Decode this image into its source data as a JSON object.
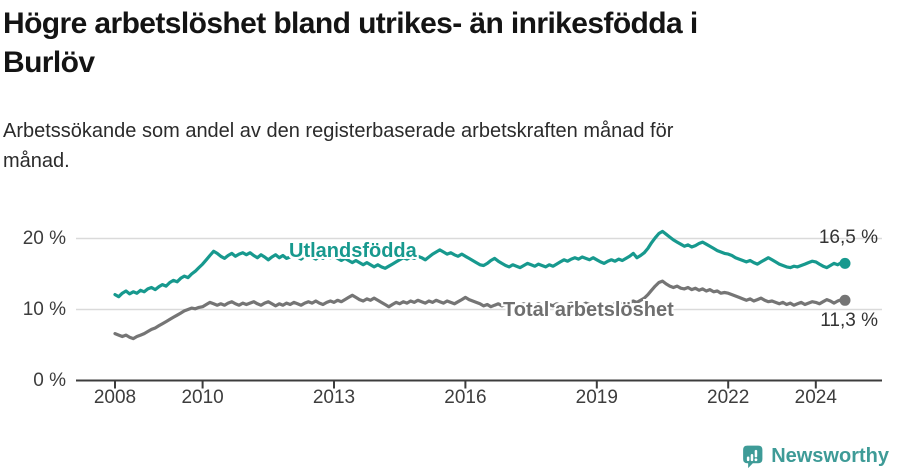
{
  "title": {
    "lines": [
      "Högre arbetslöshet bland utrikes- än inrikesfödda i",
      "Burlöv"
    ]
  },
  "subtitle": {
    "lines": [
      "Arbetssökande som andel av den registerbaserade arbetskraften månad för",
      "månad."
    ]
  },
  "chart_data": {
    "type": "line",
    "unit": "%",
    "x_axis": {
      "start": "2008-01",
      "interval": "monthly",
      "tick_years": [
        2008,
        2010,
        2013,
        2016,
        2019,
        2022,
        2024
      ],
      "tick_labels": [
        "2008",
        "2010",
        "2013",
        "2016",
        "2019",
        "2022",
        "2024"
      ]
    },
    "y_axis": {
      "ticks": [
        0,
        10,
        20
      ],
      "tick_labels": [
        "0 %",
        "10 %",
        "20 %"
      ],
      "ylim": [
        0,
        22.5
      ],
      "grid": true
    },
    "series": [
      {
        "name": "Utlandsfödda",
        "color": "#17998e",
        "end_label": "16,5 %",
        "end_value": 16.5,
        "values": [
          12.1,
          11.8,
          12.3,
          12.6,
          12.2,
          12.5,
          12.3,
          12.7,
          12.5,
          12.9,
          13.1,
          12.8,
          13.2,
          13.5,
          13.3,
          13.8,
          14.1,
          13.9,
          14.4,
          14.7,
          14.5,
          15.0,
          15.4,
          15.9,
          16.4,
          17.0,
          17.6,
          18.2,
          17.9,
          17.5,
          17.2,
          17.6,
          17.9,
          17.5,
          17.8,
          18.0,
          17.7,
          18.0,
          17.6,
          17.3,
          17.7,
          17.4,
          17.0,
          17.4,
          17.7,
          17.3,
          17.6,
          17.2,
          17.4,
          17.7,
          17.4,
          17.1,
          17.5,
          17.7,
          17.4,
          17.1,
          17.5,
          17.2,
          17.6,
          17.3,
          17.5,
          17.2,
          16.9,
          17.2,
          16.9,
          16.6,
          16.9,
          16.6,
          16.3,
          16.6,
          16.3,
          16.0,
          16.3,
          16.0,
          15.8,
          16.1,
          16.4,
          16.7,
          17.0,
          17.3,
          17.1,
          17.4,
          17.2,
          17.5,
          17.3,
          17.0,
          17.4,
          17.8,
          18.1,
          18.4,
          18.1,
          17.8,
          18.0,
          17.7,
          17.5,
          17.8,
          17.5,
          17.2,
          16.9,
          16.6,
          16.3,
          16.2,
          16.5,
          16.9,
          17.2,
          16.8,
          16.5,
          16.2,
          16.0,
          16.3,
          16.1,
          15.9,
          16.2,
          16.5,
          16.3,
          16.1,
          16.4,
          16.2,
          16.0,
          16.3,
          16.1,
          16.4,
          16.7,
          17.0,
          16.8,
          17.1,
          17.3,
          17.1,
          17.4,
          17.2,
          17.0,
          17.3,
          17.0,
          16.7,
          16.5,
          16.8,
          17.0,
          16.8,
          17.1,
          16.9,
          17.2,
          17.5,
          17.9,
          17.3,
          17.6,
          18.0,
          18.6,
          19.4,
          20.1,
          20.7,
          21.0,
          20.6,
          20.2,
          19.8,
          19.5,
          19.2,
          18.9,
          19.1,
          18.8,
          19.0,
          19.3,
          19.5,
          19.2,
          18.9,
          18.6,
          18.3,
          18.1,
          17.9,
          17.8,
          17.6,
          17.3,
          17.1,
          16.9,
          16.7,
          16.9,
          16.6,
          16.4,
          16.7,
          17.0,
          17.3,
          17.0,
          16.7,
          16.4,
          16.2,
          16.0,
          15.9,
          16.1,
          16.0,
          16.2,
          16.4,
          16.6,
          16.8,
          16.7,
          16.4,
          16.1,
          15.9,
          16.2,
          16.5,
          16.3,
          16.6,
          16.5
        ]
      },
      {
        "name": "Total arbetslöshet",
        "color": "#757575",
        "end_label": "11,3 %",
        "end_value": 11.3,
        "values": [
          6.6,
          6.4,
          6.2,
          6.4,
          6.1,
          5.9,
          6.2,
          6.4,
          6.6,
          6.9,
          7.2,
          7.4,
          7.7,
          8.0,
          8.3,
          8.6,
          8.9,
          9.2,
          9.5,
          9.8,
          10.0,
          10.2,
          10.1,
          10.3,
          10.4,
          10.7,
          11.0,
          10.8,
          10.6,
          10.8,
          10.6,
          10.9,
          11.1,
          10.8,
          10.6,
          10.9,
          10.7,
          10.9,
          11.1,
          10.8,
          10.6,
          10.9,
          11.1,
          10.8,
          10.5,
          10.8,
          10.6,
          10.9,
          10.7,
          11.0,
          10.8,
          10.6,
          10.9,
          11.1,
          10.9,
          11.2,
          10.9,
          10.7,
          11.0,
          11.2,
          11.0,
          11.3,
          11.1,
          11.4,
          11.7,
          12.0,
          11.7,
          11.4,
          11.2,
          11.5,
          11.3,
          11.6,
          11.3,
          11.0,
          10.7,
          10.4,
          10.7,
          11.0,
          10.8,
          11.1,
          10.9,
          11.2,
          11.0,
          11.3,
          11.1,
          10.9,
          11.2,
          11.0,
          11.3,
          11.1,
          10.9,
          11.2,
          11.0,
          10.8,
          11.1,
          11.4,
          11.7,
          11.4,
          11.2,
          11.0,
          10.8,
          10.5,
          10.7,
          10.4,
          10.6,
          10.8,
          10.5,
          10.7,
          10.5,
          10.7,
          10.4,
          10.6,
          10.8,
          10.5,
          10.3,
          10.6,
          10.8,
          10.6,
          10.4,
          10.7,
          10.5,
          10.8,
          10.6,
          10.4,
          10.7,
          10.9,
          10.6,
          10.4,
          10.6,
          10.9,
          10.7,
          10.5,
          10.4,
          10.6,
          10.4,
          10.7,
          10.5,
          10.8,
          10.6,
          10.9,
          10.7,
          11.0,
          11.2,
          11.0,
          11.3,
          11.6,
          12.1,
          12.7,
          13.3,
          13.8,
          14.0,
          13.6,
          13.3,
          13.1,
          13.3,
          13.0,
          12.9,
          13.1,
          12.8,
          13.0,
          12.7,
          12.9,
          12.6,
          12.8,
          12.5,
          12.6,
          12.3,
          12.4,
          12.3,
          12.1,
          11.9,
          11.7,
          11.5,
          11.3,
          11.5,
          11.2,
          11.4,
          11.6,
          11.3,
          11.1,
          11.2,
          11.0,
          10.8,
          11.0,
          10.7,
          10.9,
          10.6,
          10.8,
          11.0,
          10.7,
          10.9,
          11.1,
          11.0,
          10.8,
          11.1,
          11.4,
          11.2,
          10.9,
          11.2,
          11.4,
          11.3
        ]
      }
    ]
  },
  "colors": {
    "accent_teal": "#17998e",
    "series_gray": "#757575",
    "axis": "#3c3c3c",
    "grid": "#dadada",
    "text": "#141414",
    "brand_teal": "#3e9b97"
  },
  "footer": {
    "brand": "Newsworthy"
  }
}
